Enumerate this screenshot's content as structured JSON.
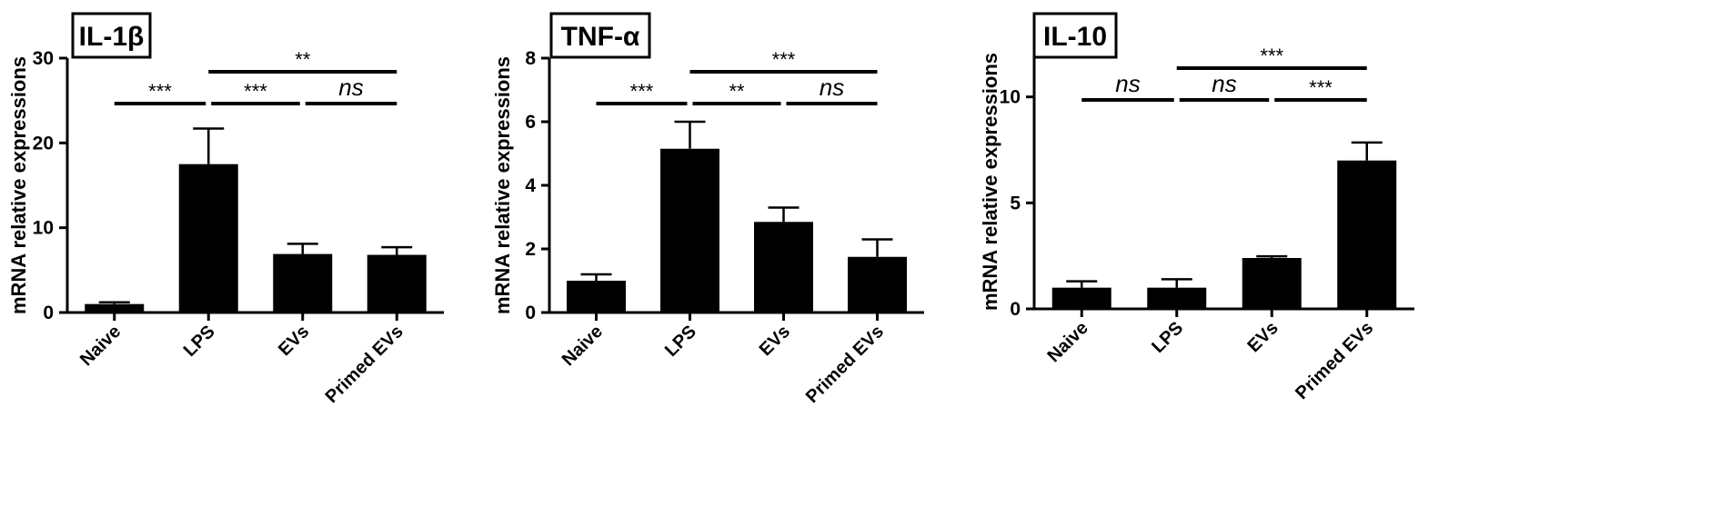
{
  "chart_data": [
    {
      "type": "bar",
      "title": "IL-1β",
      "ylabel": "mRNA relative expressions",
      "xlabel": "",
      "categories": [
        "Naive",
        "LPS",
        "EVs",
        "Primed EVs"
      ],
      "values": [
        1.0,
        17.5,
        6.9,
        6.8
      ],
      "errors": [
        0.2,
        4.2,
        1.2,
        0.9
      ],
      "ylim": [
        0,
        30
      ],
      "yticks": [
        0,
        10,
        20,
        30
      ],
      "bar_color": "#000000",
      "significance": [
        {
          "from": 0,
          "to": 1,
          "label": "***",
          "level": 1
        },
        {
          "from": 1,
          "to": 2,
          "label": "***",
          "level": 1
        },
        {
          "from": 2,
          "to": 3,
          "label": "ns",
          "level": 1
        },
        {
          "from": 1,
          "to": 3,
          "label": "**",
          "level": 2
        }
      ]
    },
    {
      "type": "bar",
      "title": "TNF-α",
      "ylabel": "mRNA relative expressions",
      "xlabel": "",
      "categories": [
        "Naive",
        "LPS",
        "EVs",
        "Primed EVs"
      ],
      "values": [
        1.0,
        5.15,
        2.85,
        1.75
      ],
      "errors": [
        0.2,
        0.85,
        0.45,
        0.55
      ],
      "ylim": [
        0,
        8
      ],
      "yticks": [
        0,
        2,
        4,
        6,
        8
      ],
      "bar_color": "#000000",
      "significance": [
        {
          "from": 0,
          "to": 1,
          "label": "***",
          "level": 1
        },
        {
          "from": 1,
          "to": 2,
          "label": "**",
          "level": 1
        },
        {
          "from": 2,
          "to": 3,
          "label": "ns",
          "level": 1
        },
        {
          "from": 1,
          "to": 3,
          "label": "***",
          "level": 2
        }
      ]
    },
    {
      "type": "bar",
      "title": "IL-10",
      "ylabel": "mRNA relative expressions",
      "xlabel": "",
      "categories": [
        "Naive",
        "LPS",
        "EVs",
        "Primed EVs"
      ],
      "values": [
        1.0,
        1.0,
        2.4,
        7.0
      ],
      "errors": [
        0.3,
        0.4,
        0.08,
        0.85
      ],
      "ylim": [
        0,
        12
      ],
      "yticks": [
        0,
        5,
        10
      ],
      "bar_color": "#000000",
      "significance": [
        {
          "from": 0,
          "to": 1,
          "label": "ns",
          "level": 1
        },
        {
          "from": 1,
          "to": 2,
          "label": "ns",
          "level": 1
        },
        {
          "from": 2,
          "to": 3,
          "label": "***",
          "level": 1
        },
        {
          "from": 1,
          "to": 3,
          "label": "***",
          "level": 2
        }
      ]
    }
  ]
}
